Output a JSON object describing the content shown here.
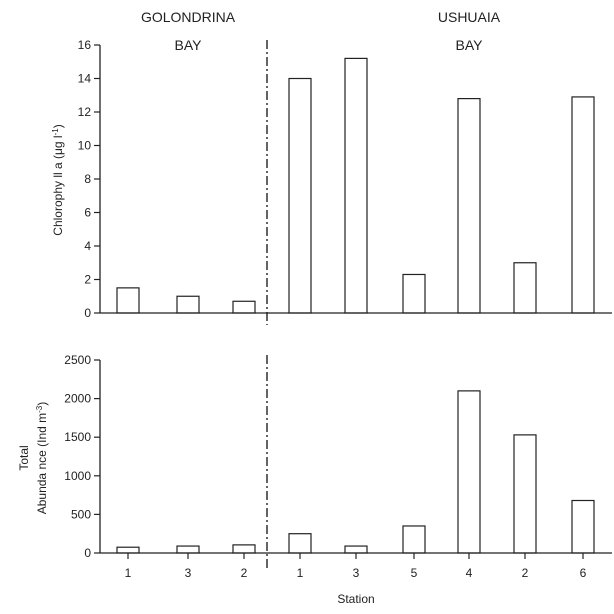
{
  "chart_data": [
    {
      "type": "bar",
      "panel": "top",
      "groups": [
        {
          "label_lines": [
            "GOLONDRINA",
            "BAY"
          ],
          "stations": [
            "1",
            "3",
            "2"
          ]
        },
        {
          "label_lines": [
            "USHUAIA",
            "BAY"
          ],
          "stations": [
            "1",
            "3",
            "5",
            "4",
            "2",
            "6"
          ]
        }
      ],
      "categories": [
        "1",
        "3",
        "2",
        "1",
        "3",
        "5",
        "4",
        "2",
        "6"
      ],
      "values": [
        1.5,
        1.0,
        0.7,
        14.0,
        15.2,
        2.3,
        12.8,
        3.0,
        12.9
      ],
      "ylabel_parts": {
        "main": "Chlorophy ll a (μg l",
        "exp": "-1",
        "close": ")"
      },
      "ylim": [
        0,
        16
      ],
      "yticks": [
        0,
        2,
        4,
        6,
        8,
        10,
        12,
        14,
        16
      ],
      "xticks_visible": false,
      "separator_after_index": 2,
      "grid": false
    },
    {
      "type": "bar",
      "panel": "bottom",
      "categories": [
        "1",
        "3",
        "2",
        "1",
        "3",
        "5",
        "4",
        "2",
        "6"
      ],
      "values": [
        75,
        90,
        105,
        250,
        90,
        350,
        2100,
        1530,
        680
      ],
      "ylabel_lines": [
        "Total"
      ],
      "ylabel2_parts": {
        "main": "Abunda nce (Ind m",
        "exp": "-3",
        "close": ")"
      },
      "xlabel": "Station",
      "ylim": [
        0,
        2500
      ],
      "yticks": [
        0,
        500,
        1000,
        1500,
        2000,
        2500
      ],
      "xticks_visible": true,
      "separator_after_index": 2,
      "grid": false
    }
  ],
  "colors": {
    "ink": "#222222",
    "bar_fill": "#ffffff"
  }
}
